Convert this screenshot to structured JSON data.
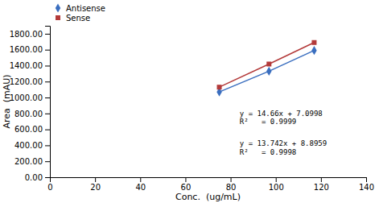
{
  "chart_data": {
    "type": "line",
    "x": [
      75,
      97,
      117
    ],
    "series": [
      {
        "name": "Antisense",
        "color": "#3A6EBF",
        "marker": "diamond",
        "line_style": "solid",
        "values": [
          1070,
          1330,
          1590
        ]
      },
      {
        "name": "Sense",
        "color": "#B33A3A",
        "marker": "square",
        "line_style": "solid",
        "values": [
          1130,
          1420,
          1690
        ]
      }
    ],
    "annotations": [
      [
        "y = 14.66x + 7.0998",
        "R²   = 0.9999"
      ],
      [
        "y = 13.742x + 8.8959",
        "R²   = 0.9998"
      ]
    ],
    "xlabel": "Conc.  (ug/mL)",
    "ylabel": "Area  (mAU)",
    "xlim": [
      0,
      140
    ],
    "ylim": [
      0,
      1900
    ],
    "xticks": [
      0,
      20,
      40,
      60,
      80,
      100,
      120,
      140
    ],
    "yticks": [
      {
        "value": 0,
        "label": "0.00"
      },
      {
        "value": 200,
        "label": "200.00"
      },
      {
        "value": 400,
        "label": "400.00"
      },
      {
        "value": 600,
        "label": "600.00"
      },
      {
        "value": 800,
        "label": "800.00"
      },
      {
        "value": 1000,
        "label": "1000.00"
      },
      {
        "value": 1200,
        "label": "1200.00"
      },
      {
        "value": 1400,
        "label": "1400.00"
      },
      {
        "value": 1600,
        "label": "1600.00"
      },
      {
        "value": 1800,
        "label": "1800.00"
      }
    ],
    "grid": false,
    "legend": "upper left"
  }
}
